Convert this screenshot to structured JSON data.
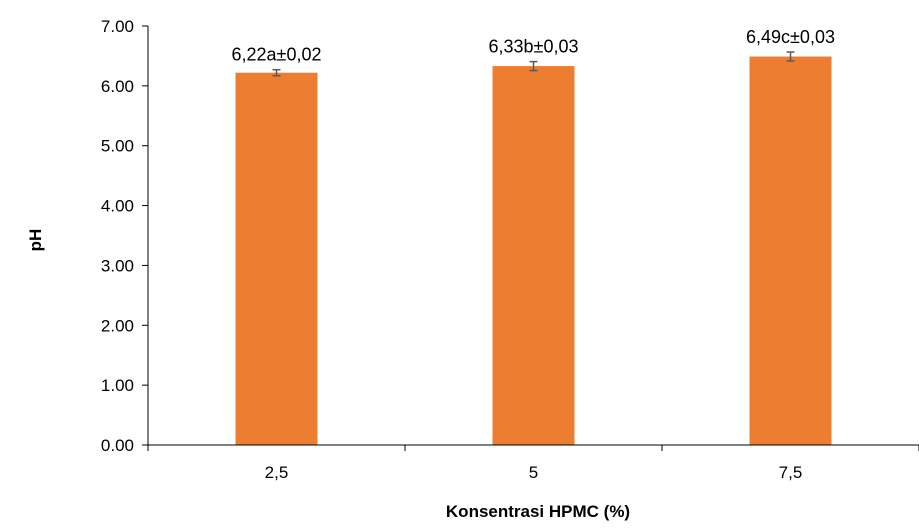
{
  "chart_data": {
    "type": "bar",
    "categories": [
      "2,5",
      "5",
      "7,5"
    ],
    "values": [
      6.22,
      6.33,
      6.49
    ],
    "errors": [
      0.02,
      0.03,
      0.03
    ],
    "data_labels": [
      "6,22a±0,02",
      "6,33b±0,03",
      "6,49c±0,03"
    ],
    "yticks": [
      "0.00",
      "1.00",
      "2.00",
      "3.00",
      "4.00",
      "5.00",
      "6.00",
      "7.00"
    ],
    "xlabel": "Konsentrasi HPMC (%)",
    "ylabel": "pH",
    "ylim": [
      0,
      7
    ],
    "grid": false,
    "bar_color": "#ED7D31",
    "error_color": "#595959"
  }
}
